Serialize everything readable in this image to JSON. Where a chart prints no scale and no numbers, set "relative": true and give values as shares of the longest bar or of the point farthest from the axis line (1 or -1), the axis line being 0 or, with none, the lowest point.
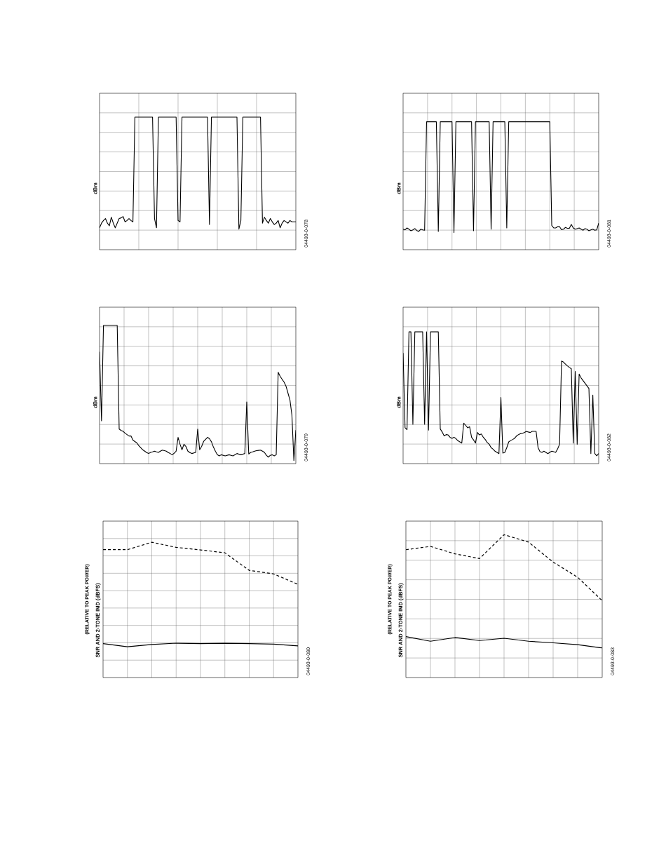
{
  "chart_data": [
    {
      "type": "line",
      "relative": true,
      "grid": true,
      "tick_labels": false,
      "ylabel": "dBm",
      "categories": [
        null,
        null,
        null,
        null,
        null,
        null,
        null,
        null,
        null,
        null,
        null,
        null,
        null,
        null,
        null,
        null,
        null,
        null,
        null,
        null,
        null,
        null,
        null,
        null,
        null,
        null,
        null,
        null,
        null,
        null,
        null,
        null,
        null,
        null,
        null,
        null,
        null,
        null,
        null,
        null,
        null,
        null,
        null,
        null,
        null,
        null,
        null,
        null,
        null,
        null,
        null,
        null,
        null,
        null,
        null,
        null,
        null,
        null,
        null,
        null,
        null,
        null,
        null,
        null,
        null,
        null,
        null,
        null,
        null,
        null,
        null,
        null,
        null,
        null,
        null,
        null,
        null,
        null,
        null,
        null,
        null,
        null,
        null,
        null,
        null,
        null,
        null,
        null,
        null,
        null,
        null,
        null,
        null,
        null,
        null,
        null,
        null,
        null,
        null,
        null,
        null
      ],
      "annotations": [
        "04493-0-078"
      ],
      "series": [
        {
          "color": "#000000",
          "values": [
            0.165,
            0.2,
            0.22,
            0.235,
            0.2,
            0.18,
            0.245,
            0.2,
            0.165,
            0.2,
            0.235,
            0.24,
            0.25,
            0.21,
            0.22,
            0.235,
            0.22,
            0.21,
            1,
            1,
            1,
            1,
            1,
            1,
            1,
            1,
            1,
            1,
            0.235,
            0.165,
            1,
            1,
            1,
            1,
            1,
            1,
            1,
            1,
            1,
            1,
            0.22,
            0.21,
            1,
            1,
            1,
            1,
            1,
            1,
            1,
            1,
            1,
            1,
            1,
            1,
            1,
            1,
            0.19,
            1,
            1,
            1,
            1,
            1,
            1,
            1,
            1,
            1,
            1,
            1,
            1,
            1,
            1,
            0.155,
            0.22,
            1,
            1,
            1,
            1,
            1,
            1,
            1,
            1,
            1,
            1,
            0.2,
            0.245,
            0.22,
            0.2,
            0.235,
            0.21,
            0.19,
            0.2,
            0.22,
            0.165,
            0.2,
            0.22,
            0.21,
            0.2,
            0.22,
            0.21,
            0.21,
            0.21
          ]
        }
      ]
    },
    {
      "type": "line",
      "relative": true,
      "grid": true,
      "tick_labels": false,
      "ylabel": "dBm",
      "categories": [
        null,
        null,
        null,
        null,
        null,
        null,
        null,
        null,
        null,
        null,
        null,
        null,
        null,
        null,
        null,
        null,
        null,
        null,
        null,
        null,
        null,
        null,
        null,
        null,
        null,
        null,
        null,
        null,
        null,
        null,
        null,
        null,
        null,
        null,
        null,
        null,
        null,
        null,
        null,
        null,
        null,
        null,
        null,
        null,
        null,
        null,
        null,
        null,
        null,
        null,
        null,
        null,
        null,
        null,
        null,
        null,
        null,
        null,
        null,
        null,
        null,
        null,
        null,
        null,
        null,
        null,
        null,
        null,
        null,
        null,
        null,
        null,
        null,
        null,
        null,
        null,
        null,
        null,
        null,
        null,
        null,
        null,
        null,
        null,
        null,
        null,
        null,
        null,
        null,
        null,
        null,
        null,
        null,
        null,
        null,
        null,
        null,
        null,
        null,
        null,
        null
      ],
      "annotations": [
        "04493-0-081"
      ],
      "series": [
        {
          "color": "#000000",
          "values": [
            0.16,
            0.155,
            0.17,
            0.16,
            0.148,
            0.155,
            0.165,
            0.15,
            0.143,
            0.16,
            0.155,
            0.152,
            1,
            1,
            1,
            1,
            1,
            1,
            0.143,
            1,
            1,
            1,
            1,
            1,
            1,
            1,
            0.134,
            1,
            1,
            1,
            1,
            1,
            1,
            1,
            1,
            1,
            0.148,
            1,
            1,
            1,
            1,
            1,
            1,
            1,
            1,
            0.16,
            1,
            1,
            1,
            1,
            1,
            1,
            1,
            0.17,
            1,
            1,
            1,
            1,
            1,
            1,
            1,
            1,
            1,
            1,
            1,
            1,
            1,
            1,
            1,
            1,
            1,
            1,
            1,
            1,
            1,
            1,
            0.19,
            0.17,
            0.17,
            0.18,
            0.18,
            0.156,
            0.16,
            0.174,
            0.167,
            0.167,
            0.198,
            0.17,
            0.16,
            0.165,
            0.17,
            0.16,
            0.152,
            0.165,
            0.16,
            0.148,
            0.155,
            0.16,
            0.152,
            0.155,
            0.207
          ]
        }
      ]
    },
    {
      "type": "line",
      "relative": true,
      "grid": true,
      "tick_labels": false,
      "ylabel": "dBm",
      "categories": [
        null,
        null,
        null,
        null,
        null,
        null,
        null,
        null,
        null,
        null,
        null,
        null,
        null,
        null,
        null,
        null,
        null,
        null,
        null,
        null,
        null,
        null,
        null,
        null,
        null,
        null,
        null,
        null,
        null,
        null,
        null,
        null,
        null,
        null,
        null,
        null,
        null,
        null,
        null,
        null,
        null,
        null,
        null,
        null,
        null,
        null,
        null,
        null,
        null,
        null,
        null,
        null,
        null,
        null,
        null,
        null,
        null,
        null,
        null,
        null,
        null,
        null,
        null,
        null,
        null,
        null,
        null,
        null,
        null,
        null,
        null,
        null,
        null,
        null,
        null,
        null,
        null,
        null,
        null,
        null,
        null,
        null,
        null,
        null,
        null,
        null,
        null,
        null,
        null,
        null,
        null,
        null,
        null,
        null,
        null,
        null,
        null,
        null,
        null,
        null,
        null
      ],
      "annotations": [
        "04493-0-079"
      ],
      "series": [
        {
          "color": "#000000",
          "values": [
            0.81,
            0.31,
            1,
            1,
            1,
            1,
            1,
            1,
            1,
            1,
            0.25,
            0.24,
            0.234,
            0.22,
            0.21,
            0.2,
            0.2,
            0.17,
            0.16,
            0.15,
            0.13,
            0.115,
            0.1,
            0.09,
            0.08,
            0.073,
            0.081,
            0.085,
            0.09,
            0.085,
            0.081,
            0.09,
            0.098,
            0.094,
            0.09,
            0.08,
            0.073,
            0.064,
            0.075,
            0.09,
            0.19,
            0.14,
            0.1,
            0.14,
            0.124,
            0.09,
            0.08,
            0.073,
            0.077,
            0.081,
            0.25,
            0.1,
            0.124,
            0.16,
            0.175,
            0.19,
            0.18,
            0.158,
            0.12,
            0.09,
            0.065,
            0.056,
            0.064,
            0.06,
            0.056,
            0.06,
            0.064,
            0.06,
            0.056,
            0.065,
            0.073,
            0.068,
            0.064,
            0.068,
            0.073,
            0.446,
            0.07,
            0.081,
            0.085,
            0.09,
            0.094,
            0.096,
            0.098,
            0.09,
            0.081,
            0.06,
            0.047,
            0.06,
            0.064,
            0.056,
            0.064,
            0.661,
            0.632,
            0.61,
            0.59,
            0.56,
            0.51,
            0.46,
            0.35,
            0.022,
            0.242
          ]
        }
      ]
    },
    {
      "type": "line",
      "relative": true,
      "grid": true,
      "tick_labels": false,
      "ylabel": "dBm",
      "categories": [
        null,
        null,
        null,
        null,
        null,
        null,
        null,
        null,
        null,
        null,
        null,
        null,
        null,
        null,
        null,
        null,
        null,
        null,
        null,
        null,
        null,
        null,
        null,
        null,
        null,
        null,
        null,
        null,
        null,
        null,
        null,
        null,
        null,
        null,
        null,
        null,
        null,
        null,
        null,
        null,
        null,
        null,
        null,
        null,
        null,
        null,
        null,
        null,
        null,
        null,
        null,
        null,
        null,
        null,
        null,
        null,
        null,
        null,
        null,
        null,
        null,
        null,
        null,
        null,
        null,
        null,
        null,
        null,
        null,
        null,
        null,
        null,
        null,
        null,
        null,
        null,
        null,
        null,
        null,
        null,
        null,
        null,
        null,
        null,
        null,
        null,
        null,
        null,
        null,
        null,
        null,
        null,
        null,
        null,
        null,
        null,
        null,
        null,
        null,
        null,
        null
      ],
      "annotations": [
        "04493-0-082"
      ],
      "series": [
        {
          "color": "#000000",
          "values": [
            0.84,
            0.272,
            0.258,
            1,
            1,
            0.298,
            1,
            1,
            1,
            1,
            1,
            0.298,
            1,
            0.254,
            1,
            1,
            1,
            1,
            1,
            0.263,
            0.24,
            0.21,
            0.22,
            0.218,
            0.2,
            0.192,
            0.2,
            0.19,
            0.174,
            0.165,
            0.156,
            0.307,
            0.29,
            0.272,
            0.28,
            0.2,
            0.18,
            0.156,
            0.236,
            0.218,
            0.225,
            0.2,
            0.183,
            0.16,
            0.147,
            0.121,
            0.11,
            0.094,
            0.085,
            0.076,
            0.503,
            0.08,
            0.085,
            0.121,
            0.165,
            0.175,
            0.183,
            0.192,
            0.21,
            0.22,
            0.227,
            0.23,
            0.236,
            0.245,
            0.24,
            0.236,
            0.245,
            0.245,
            0.245,
            0.121,
            0.09,
            0.085,
            0.094,
            0.085,
            0.076,
            0.085,
            0.094,
            0.09,
            0.085,
            0.112,
            0.147,
            0.778,
            0.77,
            0.755,
            0.742,
            0.73,
            0.72,
            0.156,
            0.7,
            0.147,
            0.68,
            0.65,
            0.63,
            0.61,
            0.59,
            0.57,
            0.076,
            0.52,
            0.076,
            0.059,
            0.076
          ]
        }
      ]
    },
    {
      "type": "line",
      "relative": true,
      "grid": true,
      "tick_labels": false,
      "ylabel": "SNR AND 2-TONE IMD (dBFS)",
      "categories": [
        null,
        null,
        null,
        null,
        null,
        null,
        null,
        null,
        null
      ],
      "annotations": [
        "(RELATIVE TO PEAK POWER)",
        "04493-0-080"
      ],
      "series": [
        {
          "color": "#000000",
          "line_style": "dashed",
          "values": [
            0.945,
            0.945,
            1,
            0.962,
            0.943,
            0.922,
            0.792,
            0.766,
            0.689
          ]
        },
        {
          "color": "#000000",
          "line_style": "solid",
          "values": [
            0.251,
            0.227,
            0.244,
            0.254,
            0.251,
            0.253,
            0.251,
            0.247,
            0.234
          ]
        }
      ]
    },
    {
      "type": "line",
      "relative": true,
      "grid": true,
      "tick_labels": false,
      "ylabel": "SNR AND 2-TONE IMD (dBFS)",
      "categories": [
        null,
        null,
        null,
        null,
        null,
        null,
        null,
        null,
        null
      ],
      "annotations": [
        "(RELATIVE TO PEAK POWER)",
        "04493-0-083"
      ],
      "series": [
        {
          "color": "#000000",
          "line_style": "dashed",
          "values": [
            0.895,
            0.918,
            0.866,
            0.833,
            1,
            0.948,
            0.808,
            0.702,
            0.538
          ]
        },
        {
          "color": "#000000",
          "line_style": "solid",
          "values": [
            0.287,
            0.254,
            0.28,
            0.259,
            0.275,
            0.254,
            0.243,
            0.23,
            0.207
          ]
        }
      ]
    }
  ]
}
